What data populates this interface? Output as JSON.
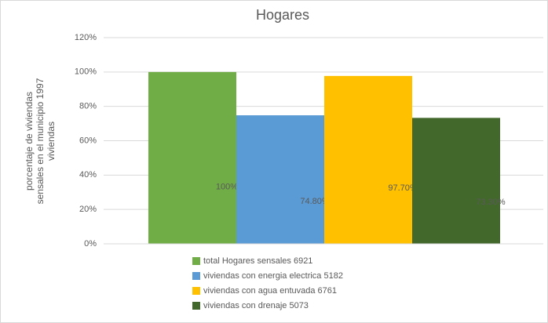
{
  "chart_data": {
    "type": "bar",
    "title": "Hogares",
    "ylabel": [
      "porcentaje de viviendas",
      "sensales  en el municipio 1997",
      "viviendas"
    ],
    "categories": [
      null
    ],
    "series": [
      {
        "name": "total Hogares sensales 6921",
        "color": "#70ad47",
        "values": [
          100
        ],
        "value_labels": [
          "100%"
        ]
      },
      {
        "name": "viviendas con energia electrica 5182",
        "color": "#5b9bd5",
        "values": [
          74.8
        ],
        "value_labels": [
          "74.80%"
        ]
      },
      {
        "name": "viviendas con agua entuvada 6761",
        "color": "#ffc000",
        "values": [
          97.7
        ],
        "value_labels": [
          "97.70%"
        ]
      },
      {
        "name": "viviendas con drenaje 5073",
        "color": "#43682b",
        "values": [
          73.3
        ],
        "value_labels": [
          "73.30%"
        ]
      }
    ],
    "ylim": [
      0,
      120
    ],
    "yticks": [
      {
        "value": 0,
        "label": "0%"
      },
      {
        "value": 20,
        "label": "20%"
      },
      {
        "value": 40,
        "label": "40%"
      },
      {
        "value": 60,
        "label": "60%"
      },
      {
        "value": 80,
        "label": "80%"
      },
      {
        "value": 100,
        "label": "100%"
      },
      {
        "value": 120,
        "label": "120%"
      }
    ],
    "grid": true,
    "legend": "bottom"
  }
}
